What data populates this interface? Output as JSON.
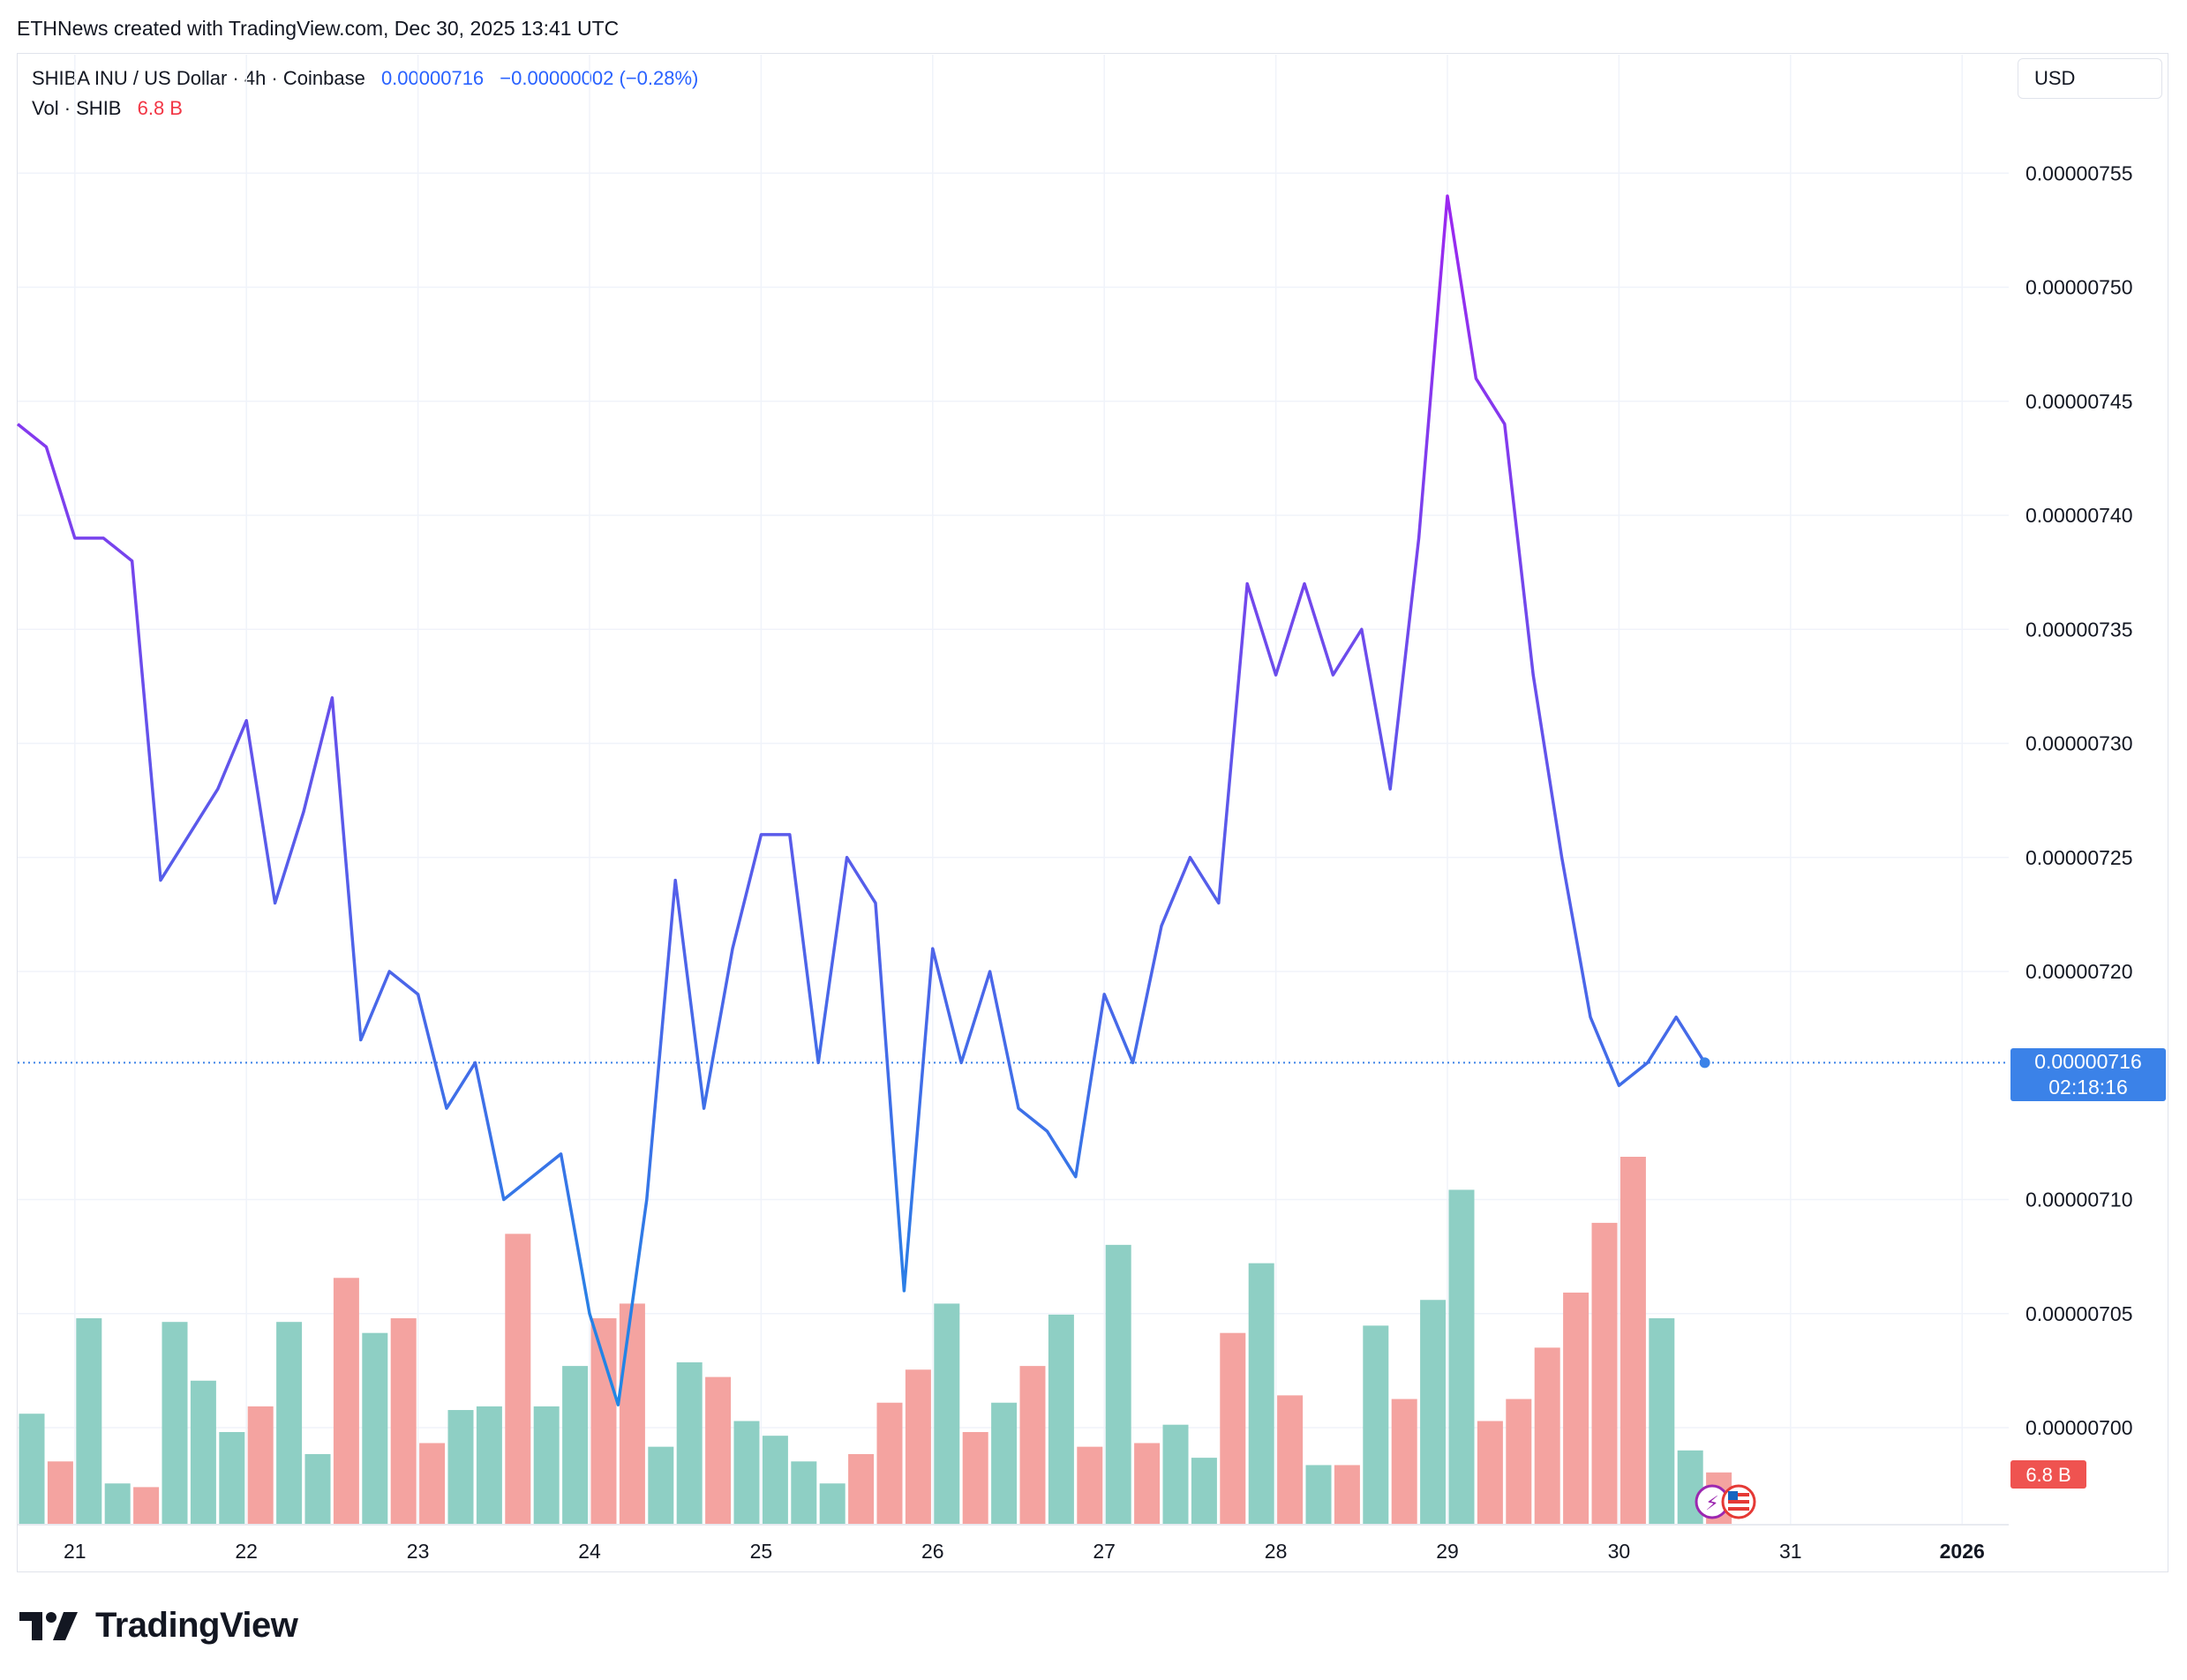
{
  "attribution": "ETHNews created with TradingView.com, Dec 30, 2025 13:41 UTC",
  "legend": {
    "symbol": "SHIBA INU / US Dollar · 4h · Coinbase",
    "price": "0.00000716",
    "change": "−0.00000002 (−0.28%)",
    "volume_label": "Vol · SHIB",
    "volume_value": "6.8 B"
  },
  "currency_button": "USD",
  "brand": "TradingView",
  "colors": {
    "line_top": "#9c27f0",
    "line_bottom": "#1e88e5",
    "vol_up": "#8ecfc4",
    "vol_down": "#f4a3a0",
    "price_tag": "#3b82e8",
    "vol_tag": "#ef5350"
  },
  "chart_data": {
    "type": "line",
    "x_ticks": [
      "21",
      "22",
      "23",
      "24",
      "25",
      "26",
      "27",
      "28",
      "29",
      "30",
      "31",
      "2026"
    ],
    "y_ticks": [
      "0.00000700",
      "0.00000705",
      "0.00000710",
      "0.00000720",
      "0.00000725",
      "0.00000730",
      "0.00000735",
      "0.00000740",
      "0.00000745",
      "0.00000750",
      "0.00000755"
    ],
    "y_range": [
      6.92e-06,
      7.59e-06
    ],
    "price_series_units": "1e-8 USD",
    "price": [
      744,
      743,
      739,
      739,
      738,
      724,
      726,
      728,
      731,
      723,
      727,
      732,
      717,
      720,
      719,
      714,
      716,
      710,
      711,
      712,
      705,
      701,
      710,
      724,
      714,
      721,
      726,
      726,
      716,
      725,
      723,
      706,
      721,
      716,
      720,
      714,
      713,
      711,
      719,
      716,
      722,
      725,
      723,
      737,
      733,
      737,
      733,
      735,
      728,
      739,
      754,
      746,
      744,
      733,
      725,
      718,
      715,
      716,
      718,
      716
    ],
    "volume_direction": [
      "up",
      "down",
      "up",
      "up",
      "down",
      "up",
      "up",
      "up",
      "down",
      "up",
      "up",
      "down",
      "up",
      "down",
      "down",
      "up",
      "up",
      "down",
      "up",
      "up",
      "down",
      "down",
      "up",
      "up",
      "down",
      "up",
      "up",
      "up",
      "up",
      "down",
      "down",
      "down",
      "up",
      "down",
      "up",
      "down",
      "up",
      "down",
      "up",
      "down",
      "up",
      "up",
      "down",
      "up",
      "down",
      "up",
      "down",
      "up",
      "down",
      "up",
      "up",
      "down",
      "down",
      "down",
      "down",
      "down",
      "down",
      "up",
      "up",
      "down"
    ],
    "volume_relative": [
      0.3,
      0.17,
      0.56,
      0.11,
      0.1,
      0.55,
      0.39,
      0.25,
      0.32,
      0.55,
      0.19,
      0.67,
      0.52,
      0.56,
      0.22,
      0.31,
      0.32,
      0.79,
      0.32,
      0.43,
      0.56,
      0.6,
      0.21,
      0.44,
      0.4,
      0.28,
      0.24,
      0.17,
      0.11,
      0.19,
      0.33,
      0.42,
      0.6,
      0.25,
      0.33,
      0.43,
      0.57,
      0.21,
      0.76,
      0.22,
      0.27,
      0.18,
      0.52,
      0.71,
      0.35,
      0.16,
      0.16,
      0.54,
      0.34,
      0.61,
      0.91,
      0.28,
      0.34,
      0.48,
      0.63,
      0.82,
      1.0,
      0.56,
      0.2,
      0.14
    ],
    "last_price_tag": "0.00000716",
    "countdown": "02:18:16",
    "volume_tag": "6.8 B"
  }
}
